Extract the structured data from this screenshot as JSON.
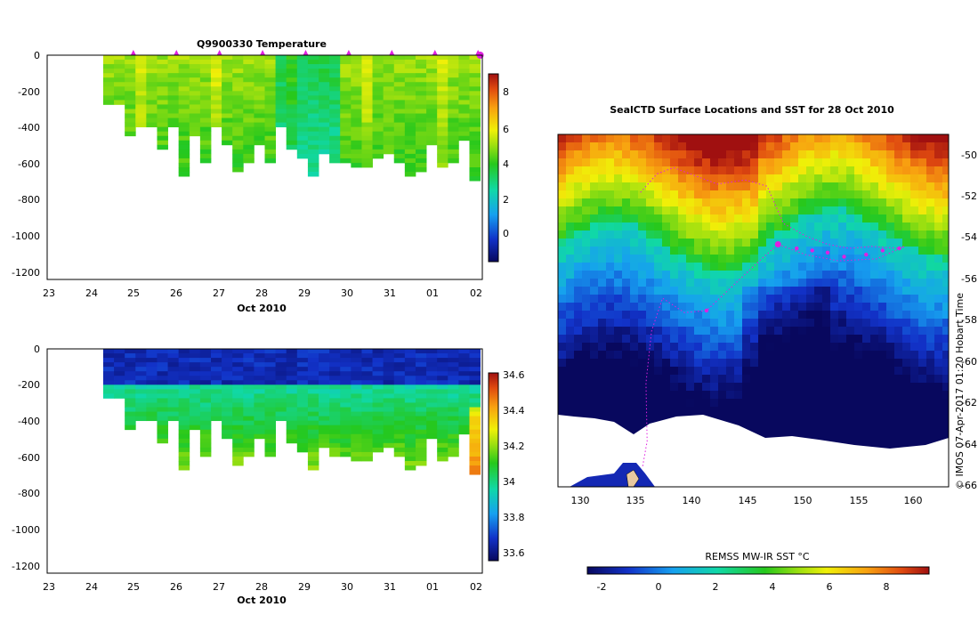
{
  "chart_data": [
    {
      "type": "heatmap",
      "title": "Q9900330  Temperature",
      "xlabel": "Oct 2010",
      "x_ticks": [
        "23",
        "24",
        "25",
        "26",
        "27",
        "28",
        "29",
        "30",
        "31",
        "01",
        "02"
      ],
      "y_ticks": [
        "0",
        "-200",
        "-400",
        "-600",
        "-800",
        "-1000",
        "-1200"
      ],
      "ylim": [
        -1250,
        0
      ],
      "colorbar_ticks": [
        "8",
        "6",
        "4",
        "2",
        "0"
      ],
      "colorbar_range": [
        -1.5,
        9.2
      ],
      "profile_depths_m": [
        270,
        270,
        440,
        400,
        400,
        520,
        400,
        660,
        440,
        580,
        380,
        500,
        640,
        600,
        480,
        580,
        400,
        520,
        560,
        660,
        540,
        600,
        580,
        610,
        610,
        560,
        530,
        580,
        660,
        640,
        480,
        610,
        590,
        460,
        680
      ],
      "marker_days": [
        25,
        26,
        27,
        28,
        29,
        30,
        31,
        32,
        33
      ]
    },
    {
      "type": "heatmap",
      "title": "",
      "xlabel": "Oct 2010",
      "x_ticks": [
        "23",
        "24",
        "25",
        "26",
        "27",
        "28",
        "29",
        "30",
        "31",
        "01",
        "02"
      ],
      "y_ticks": [
        "0",
        "-200",
        "-400",
        "-600",
        "-800",
        "-1000",
        "-1200"
      ],
      "ylim": [
        -1250,
        0
      ],
      "colorbar_ticks": [
        "34.6",
        "34.4",
        "34.2",
        "34",
        "33.8",
        "33.6"
      ],
      "colorbar_range": [
        33.55,
        34.6
      ],
      "profile_depths_m": [
        270,
        270,
        440,
        400,
        400,
        520,
        400,
        660,
        440,
        580,
        380,
        500,
        640,
        600,
        480,
        580,
        400,
        520,
        560,
        660,
        540,
        600,
        580,
        610,
        610,
        560,
        530,
        580,
        660,
        640,
        480,
        610,
        590,
        460,
        680
      ]
    },
    {
      "type": "heatmap",
      "title": "SealCTD Surface Locations and SST for 28 Oct 2010",
      "x_ticks": [
        "130",
        "135",
        "140",
        "145",
        "150",
        "155",
        "160"
      ],
      "y_ticks": [
        "-50",
        "-52",
        "-54",
        "-56",
        "-58",
        "-60",
        "-62",
        "-64",
        "-66"
      ],
      "xlim": [
        127.5,
        163
      ],
      "ylim": [
        -66,
        -49
      ],
      "colorbar_title": "REMSS MW-IR SST °C",
      "colorbar_ticks": [
        "-2",
        "0",
        "2",
        "4",
        "6",
        "8"
      ],
      "colorbar_range": [
        -2.7,
        9.6
      ],
      "surface_locations": [
        {
          "lon": 147.5,
          "lat": -54.3
        },
        {
          "lon": 149.2,
          "lat": -54.5
        },
        {
          "lon": 150.6,
          "lat": -54.6
        },
        {
          "lon": 152.0,
          "lat": -54.7
        },
        {
          "lon": 153.5,
          "lat": -54.9
        },
        {
          "lon": 155.5,
          "lat": -54.8
        },
        {
          "lon": 157.0,
          "lat": -54.6
        },
        {
          "lon": 158.5,
          "lat": -54.5
        },
        {
          "lon": 141.0,
          "lat": -57.5
        }
      ]
    }
  ],
  "footer": {
    "credit": "© IMOS 07-Apr-2017 01:20 Hobart Time"
  }
}
